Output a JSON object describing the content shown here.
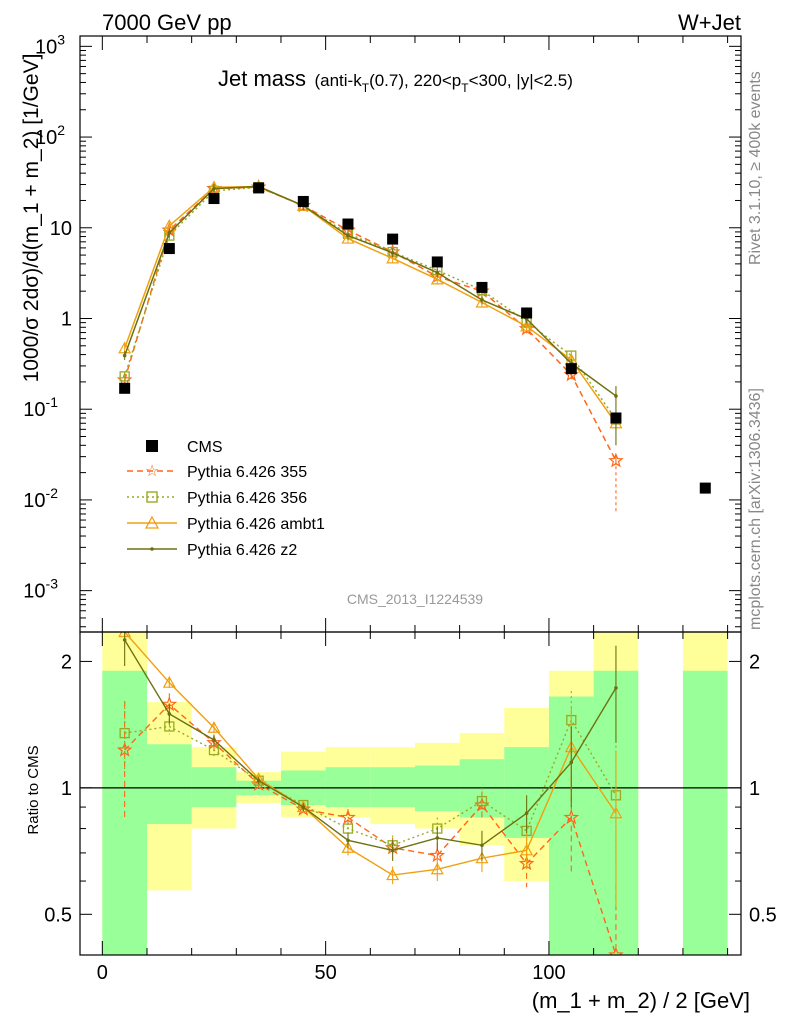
{
  "header": {
    "left": "7000 GeV pp",
    "right": "W+Jet"
  },
  "title": {
    "main": "Jet mass",
    "cut_prefix": "(anti-k",
    "cut_sub1": "T",
    "cut_mid": "(0.7), 220<p",
    "cut_sub2": "T",
    "cut_suffix": "<300, |y|<2.5)"
  },
  "side_labels": {
    "rivet": "Rivet 3.1.10, ≥ 400k events",
    "mcplots": "mcplots.cern.ch [arXiv:1306.3436]"
  },
  "analysis_id": "CMS_2013_I1224539",
  "axes": {
    "y_top_label": "1000/σ 2dσ)/d(m_1 + m_2) [1/GeV]",
    "y_bottom_label": "Ratio to CMS",
    "x_label": "(m_1 + m_2) / 2 [GeV]"
  },
  "legend": [
    "CMS",
    "Pythia 6.426 355",
    "Pythia 6.426 356",
    "Pythia 6.426 ambt1",
    "Pythia 6.426 z2"
  ],
  "chart_data": {
    "type": "scatter",
    "x_edges": [
      0,
      10,
      20,
      30,
      40,
      50,
      60,
      70,
      80,
      90,
      100,
      110,
      120,
      130,
      140
    ],
    "x": [
      5,
      15,
      25,
      35,
      45,
      55,
      65,
      75,
      85,
      95,
      105,
      115,
      125,
      135
    ],
    "xlim": [
      -5,
      143
    ],
    "ylim": [
      0.00035,
      1300
    ],
    "yscale": "log",
    "x_ticks": [
      0,
      50,
      100
    ],
    "ratio_ylim": [
      0.4,
      2.35
    ],
    "ratio_yscale": "log",
    "ratio_ticks": [
      0.5,
      1,
      2
    ],
    "data": {
      "name": "CMS",
      "values": [
        0.17,
        5.9,
        21,
        27.5,
        19.5,
        11,
        7.5,
        4.2,
        2.2,
        1.15,
        0.28,
        0.08,
        null,
        0.0135
      ]
    },
    "series": [
      {
        "name": "Pythia 6.426 355",
        "color": "#ff6619",
        "dash": "6,4",
        "marker": "star",
        "values": [
          0.21,
          9.4,
          27,
          28,
          17.5,
          9.4,
          5.4,
          2.9,
          2.0,
          0.77,
          0.24,
          0.027
        ]
      },
      {
        "name": "Pythia 6.426 356",
        "color": "#99aa22",
        "dash": "2,3",
        "marker": "square",
        "values": [
          0.23,
          8.2,
          25.5,
          28,
          17.5,
          8.6,
          5.4,
          3.4,
          2.05,
          0.92,
          0.39,
          0.077
        ]
      },
      {
        "name": "Pythia 6.426 ambt1",
        "color": "#f0a010",
        "dash": "",
        "marker": "triangle",
        "values": [
          0.47,
          10.5,
          28,
          28.5,
          17.5,
          7.6,
          4.6,
          2.7,
          1.5,
          0.82,
          0.35,
          0.07
        ]
      },
      {
        "name": "Pythia 6.426 z2",
        "color": "#6e7010",
        "dash": "",
        "marker": "dot",
        "values": [
          0.39,
          8.8,
          27,
          28.5,
          17.5,
          8.2,
          5.3,
          3.2,
          1.6,
          0.99,
          0.32,
          0.14
        ]
      }
    ],
    "ratio": {
      "band_outer": [
        [
          0.4,
          2.35
        ],
        [
          0.57,
          1.6
        ],
        [
          0.8,
          1.25
        ],
        [
          0.92,
          1.09
        ],
        [
          0.85,
          1.22
        ],
        [
          0.85,
          1.25
        ],
        [
          0.82,
          1.25
        ],
        [
          0.8,
          1.28
        ],
        [
          0.73,
          1.35
        ],
        [
          0.6,
          1.55
        ],
        [
          0.4,
          1.9
        ],
        [
          0.4,
          2.35
        ],
        null,
        [
          0.4,
          2.35
        ]
      ],
      "band_inner": [
        [
          0.4,
          1.9
        ],
        [
          0.82,
          1.27
        ],
        [
          0.9,
          1.12
        ],
        [
          0.96,
          1.04
        ],
        [
          0.91,
          1.1
        ],
        [
          0.9,
          1.12
        ],
        [
          0.9,
          1.12
        ],
        [
          0.88,
          1.13
        ],
        [
          0.85,
          1.17
        ],
        [
          0.76,
          1.25
        ],
        [
          0.4,
          1.65
        ],
        [
          0.4,
          1.9
        ],
        null,
        [
          0.4,
          1.9
        ]
      ],
      "series": [
        {
          "name": "Pythia 6.426 355",
          "values": [
            1.23,
            1.58,
            1.28,
            1.02,
            0.89,
            0.85,
            0.72,
            0.69,
            0.91,
            0.66,
            0.85,
            0.34
          ],
          "err": [
            0.38,
            0.1,
            0.05,
            0.02,
            0.02,
            0.04,
            0.04,
            0.05,
            0.07,
            0.08,
            0.22,
            0.25
          ]
        },
        {
          "name": "Pythia 6.426 356",
          "values": [
            1.35,
            1.4,
            1.23,
            1.04,
            0.91,
            0.8,
            0.73,
            0.8,
            0.93,
            0.79,
            1.45,
            0.96
          ],
          "err": [
            0.25,
            0.06,
            0.04,
            0.02,
            0.02,
            0.03,
            0.04,
            0.05,
            0.07,
            0.08,
            0.25,
            0.3
          ]
        },
        {
          "name": "Pythia 6.426 ambt1",
          "values": [
            2.8,
            1.78,
            1.39,
            1.05,
            0.9,
            0.72,
            0.62,
            0.64,
            0.68,
            0.71,
            1.25,
            0.87
          ],
          "err": [
            0.3,
            0.05,
            0.04,
            0.02,
            0.02,
            0.03,
            0.03,
            0.04,
            0.05,
            0.07,
            0.3,
            0.35
          ]
        },
        {
          "name": "Pythia 6.426 z2",
          "values": [
            2.25,
            1.5,
            1.3,
            1.04,
            0.9,
            0.75,
            0.71,
            0.76,
            0.73,
            0.87,
            1.15,
            1.73
          ],
          "err": [
            0.3,
            0.08,
            0.04,
            0.02,
            0.02,
            0.03,
            0.04,
            0.05,
            0.06,
            0.09,
            0.25,
            0.45
          ]
        }
      ]
    }
  }
}
